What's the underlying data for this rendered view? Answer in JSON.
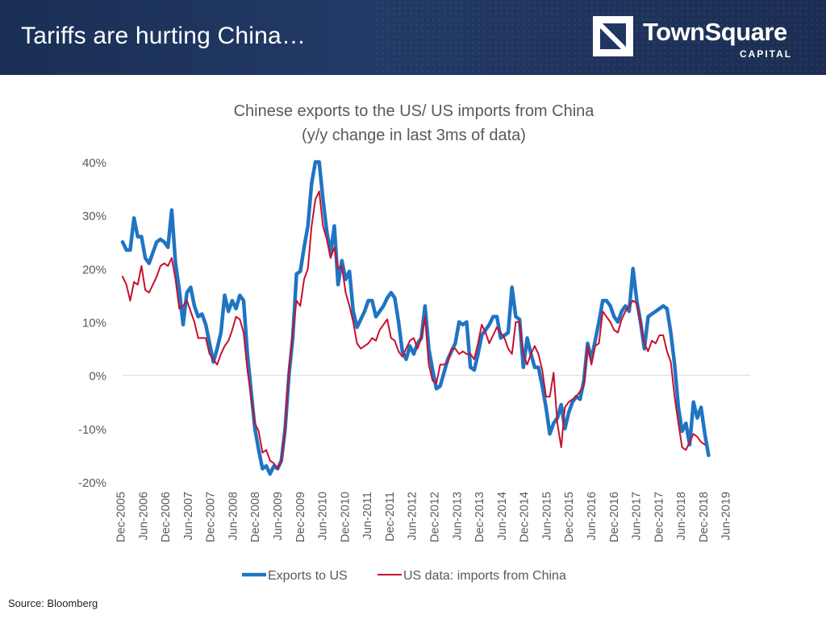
{
  "slide": {
    "title": "Tariffs are hurting China…",
    "logo_name": "TownSquare",
    "logo_sub": "CAPITAL",
    "source": "Source: Bloomberg"
  },
  "colors": {
    "header_bg": "#1f3660",
    "series_exports": "#1f74c4",
    "series_imports": "#c8102e"
  },
  "chart_data": {
    "type": "line",
    "title_lines": [
      "Chinese exports to the US/ US imports from China",
      "(y/y change in last 3ms of data)"
    ],
    "x_ticks": [
      "Dec-2005",
      "Jun-2006",
      "Dec-2006",
      "Jun-2007",
      "Dec-2007",
      "Jun-2008",
      "Dec-2008",
      "Jun-2009",
      "Dec-2009",
      "Jun-2010",
      "Dec-2010",
      "Jun-2011",
      "Dec-2011",
      "Jun-2012",
      "Dec-2012",
      "Jun-2013",
      "Dec-2013",
      "Jun-2014",
      "Dec-2014",
      "Jun-2015",
      "Dec-2015",
      "Jun-2016",
      "Dec-2016",
      "Jun-2017",
      "Dec-2017",
      "Jun-2018",
      "Dec-2018",
      "Jun-2019"
    ],
    "y_ticks": [
      40,
      30,
      20,
      10,
      0,
      -10,
      -20
    ],
    "y_tick_labels": [
      "40%",
      "30%",
      "20%",
      "10%",
      "0%",
      "-10%",
      "-20%"
    ],
    "ylim": [
      -20,
      40
    ],
    "x_unit": "months since Dec-2005",
    "xlim": [
      0,
      166
    ],
    "legend_position": "bottom",
    "grid": "zero-line only",
    "series": [
      {
        "name": "Exports to US",
        "color": "#1f74c4",
        "width": 4.5,
        "points": [
          [
            0,
            25
          ],
          [
            1,
            23.5
          ],
          [
            2,
            23.5
          ],
          [
            3,
            29.5
          ],
          [
            4,
            26
          ],
          [
            5,
            26
          ],
          [
            6,
            22
          ],
          [
            7,
            21
          ],
          [
            8,
            23
          ],
          [
            9,
            25
          ],
          [
            10,
            25.5
          ],
          [
            11,
            25
          ],
          [
            12,
            24
          ],
          [
            13,
            31
          ],
          [
            14,
            21
          ],
          [
            15,
            16
          ],
          [
            16,
            9.5
          ],
          [
            17,
            15.5
          ],
          [
            18,
            16.5
          ],
          [
            19,
            13
          ],
          [
            20,
            11
          ],
          [
            21,
            11.5
          ],
          [
            22,
            9.5
          ],
          [
            23,
            6
          ],
          [
            24,
            2.5
          ],
          [
            25,
            5
          ],
          [
            26,
            8
          ],
          [
            27,
            15
          ],
          [
            28,
            12
          ],
          [
            29,
            14
          ],
          [
            30,
            12.5
          ],
          [
            31,
            15
          ],
          [
            32,
            14
          ],
          [
            33,
            4
          ],
          [
            34,
            -3
          ],
          [
            35,
            -10
          ],
          [
            36,
            -14
          ],
          [
            37,
            -17.5
          ],
          [
            38,
            -17
          ],
          [
            39,
            -18.5
          ],
          [
            40,
            -17
          ],
          [
            41,
            -17.5
          ],
          [
            42,
            -16
          ],
          [
            43,
            -10
          ],
          [
            44,
            0
          ],
          [
            45,
            7
          ],
          [
            46,
            19
          ],
          [
            47,
            19.5
          ],
          [
            48,
            24
          ],
          [
            49,
            28
          ],
          [
            50,
            36
          ],
          [
            51,
            40
          ],
          [
            52,
            40
          ],
          [
            53,
            33
          ],
          [
            54,
            27
          ],
          [
            55,
            23
          ],
          [
            56,
            28
          ],
          [
            57,
            17
          ],
          [
            58,
            21.5
          ],
          [
            59,
            18
          ],
          [
            60,
            19.5
          ],
          [
            61,
            12
          ],
          [
            62,
            9
          ],
          [
            63,
            10.5
          ],
          [
            64,
            12
          ],
          [
            65,
            14
          ],
          [
            66,
            14
          ],
          [
            67,
            11
          ],
          [
            68,
            12
          ],
          [
            69,
            13
          ],
          [
            70,
            14.5
          ],
          [
            71,
            15.5
          ],
          [
            72,
            14.5
          ],
          [
            73,
            10
          ],
          [
            74,
            4.5
          ],
          [
            75,
            3
          ],
          [
            76,
            5.5
          ],
          [
            77,
            4
          ],
          [
            78,
            6
          ],
          [
            79,
            7
          ],
          [
            80,
            13
          ],
          [
            81,
            5
          ],
          [
            82,
            1
          ],
          [
            83,
            -2.5
          ],
          [
            84,
            -2
          ],
          [
            85,
            0.5
          ],
          [
            86,
            3
          ],
          [
            87,
            4.5
          ],
          [
            88,
            6
          ],
          [
            89,
            10
          ],
          [
            90,
            9.5
          ],
          [
            91,
            10
          ],
          [
            92,
            1.5
          ],
          [
            93,
            1
          ],
          [
            94,
            4
          ],
          [
            95,
            7.5
          ],
          [
            96,
            8.5
          ],
          [
            97,
            9.5
          ],
          [
            98,
            11
          ],
          [
            99,
            11
          ],
          [
            100,
            7
          ],
          [
            101,
            7.5
          ],
          [
            102,
            8
          ],
          [
            103,
            16.5
          ],
          [
            104,
            11
          ],
          [
            105,
            10.5
          ],
          [
            106,
            1.5
          ],
          [
            107,
            7
          ],
          [
            108,
            4
          ],
          [
            109,
            1.5
          ],
          [
            110,
            1.5
          ],
          [
            111,
            -2
          ],
          [
            112,
            -6
          ],
          [
            113,
            -11
          ],
          [
            114,
            -9
          ],
          [
            115,
            -8
          ],
          [
            116,
            -5.5
          ],
          [
            117,
            -10
          ],
          [
            118,
            -7
          ],
          [
            119,
            -5
          ],
          [
            120,
            -4
          ],
          [
            121,
            -4.5
          ],
          [
            122,
            -1
          ],
          [
            123,
            6
          ],
          [
            124,
            3
          ],
          [
            125,
            6.5
          ],
          [
            126,
            10
          ],
          [
            127,
            14
          ],
          [
            128,
            14
          ],
          [
            129,
            13
          ],
          [
            130,
            11
          ],
          [
            131,
            10
          ],
          [
            132,
            12
          ],
          [
            133,
            13
          ],
          [
            134,
            12
          ],
          [
            135,
            20
          ],
          [
            136,
            14
          ],
          [
            137,
            10
          ],
          [
            138,
            5
          ],
          [
            139,
            11
          ],
          [
            140,
            11.5
          ],
          [
            141,
            12
          ],
          [
            142,
            12.5
          ],
          [
            143,
            13
          ],
          [
            144,
            12.5
          ],
          [
            145,
            8
          ],
          [
            146,
            2
          ],
          [
            147,
            -6
          ],
          [
            148,
            -10.5
          ],
          [
            149,
            -9
          ],
          [
            150,
            -13
          ],
          [
            151,
            -5
          ],
          [
            152,
            -8
          ],
          [
            153,
            -6
          ],
          [
            154,
            -11
          ],
          [
            155,
            -15
          ]
        ]
      },
      {
        "name": "US data: imports from China",
        "color": "#c8102e",
        "width": 2,
        "points": [
          [
            0,
            18.5
          ],
          [
            1,
            17
          ],
          [
            2,
            14
          ],
          [
            3,
            17.5
          ],
          [
            4,
            17
          ],
          [
            5,
            20.5
          ],
          [
            6,
            16
          ],
          [
            7,
            15.5
          ],
          [
            8,
            17
          ],
          [
            9,
            18.5
          ],
          [
            10,
            20.5
          ],
          [
            11,
            21
          ],
          [
            12,
            20.5
          ],
          [
            13,
            22
          ],
          [
            14,
            18
          ],
          [
            15,
            12.5
          ],
          [
            16,
            13
          ],
          [
            17,
            14
          ],
          [
            18,
            12
          ],
          [
            19,
            10
          ],
          [
            20,
            7
          ],
          [
            21,
            7
          ],
          [
            22,
            7
          ],
          [
            23,
            4
          ],
          [
            24,
            3
          ],
          [
            25,
            2
          ],
          [
            26,
            4
          ],
          [
            27,
            5.5
          ],
          [
            28,
            6.5
          ],
          [
            29,
            8.5
          ],
          [
            30,
            11
          ],
          [
            31,
            10.5
          ],
          [
            32,
            8
          ],
          [
            33,
            1
          ],
          [
            34,
            -4
          ],
          [
            35,
            -9
          ],
          [
            36,
            -10.5
          ],
          [
            37,
            -14.5
          ],
          [
            38,
            -14
          ],
          [
            39,
            -16
          ],
          [
            40,
            -16.5
          ],
          [
            41,
            -17.5
          ],
          [
            42,
            -16
          ],
          [
            43,
            -10
          ],
          [
            44,
            1
          ],
          [
            45,
            8
          ],
          [
            46,
            14
          ],
          [
            47,
            13
          ],
          [
            48,
            18
          ],
          [
            49,
            20
          ],
          [
            50,
            28
          ],
          [
            51,
            33
          ],
          [
            52,
            34.5
          ],
          [
            53,
            28
          ],
          [
            54,
            25.5
          ],
          [
            55,
            22
          ],
          [
            56,
            24
          ],
          [
            57,
            20
          ],
          [
            58,
            20.5
          ],
          [
            59,
            15.5
          ],
          [
            60,
            13
          ],
          [
            61,
            10
          ],
          [
            62,
            6
          ],
          [
            63,
            5
          ],
          [
            64,
            5.5
          ],
          [
            65,
            6
          ],
          [
            66,
            7
          ],
          [
            67,
            6.5
          ],
          [
            68,
            8.5
          ],
          [
            69,
            9.5
          ],
          [
            70,
            10.5
          ],
          [
            71,
            7
          ],
          [
            72,
            6.5
          ],
          [
            73,
            4.5
          ],
          [
            74,
            3.5
          ],
          [
            75,
            5
          ],
          [
            76,
            6.5
          ],
          [
            77,
            7
          ],
          [
            78,
            5
          ],
          [
            79,
            7
          ],
          [
            80,
            11
          ],
          [
            81,
            2
          ],
          [
            82,
            -1
          ],
          [
            83,
            -1.5
          ],
          [
            84,
            2
          ],
          [
            85,
            2
          ],
          [
            86,
            2.5
          ],
          [
            87,
            5
          ],
          [
            88,
            5
          ],
          [
            89,
            4
          ],
          [
            90,
            4.5
          ],
          [
            91,
            4
          ],
          [
            92,
            4
          ],
          [
            93,
            3
          ],
          [
            94,
            6
          ],
          [
            95,
            9.5
          ],
          [
            96,
            8
          ],
          [
            97,
            6
          ],
          [
            98,
            7.5
          ],
          [
            99,
            9
          ],
          [
            100,
            8
          ],
          [
            101,
            7
          ],
          [
            102,
            5
          ],
          [
            103,
            4
          ],
          [
            104,
            10
          ],
          [
            105,
            10
          ],
          [
            106,
            4
          ],
          [
            107,
            2
          ],
          [
            108,
            4
          ],
          [
            109,
            5.5
          ],
          [
            110,
            4
          ],
          [
            111,
            1
          ],
          [
            112,
            -4
          ],
          [
            113,
            -4
          ],
          [
            114,
            0.5
          ],
          [
            115,
            -9
          ],
          [
            116,
            -13.5
          ],
          [
            117,
            -6
          ],
          [
            118,
            -5
          ],
          [
            119,
            -4.5
          ],
          [
            120,
            -4
          ],
          [
            121,
            -3
          ],
          [
            122,
            -2
          ],
          [
            123,
            5.5
          ],
          [
            124,
            2
          ],
          [
            125,
            5.5
          ],
          [
            126,
            6
          ],
          [
            127,
            12
          ],
          [
            128,
            11
          ],
          [
            129,
            10
          ],
          [
            130,
            8.5
          ],
          [
            131,
            8
          ],
          [
            132,
            10.5
          ],
          [
            133,
            12
          ],
          [
            134,
            13
          ],
          [
            135,
            14
          ],
          [
            136,
            13.5
          ],
          [
            137,
            10
          ],
          [
            138,
            6
          ],
          [
            139,
            4.5
          ],
          [
            140,
            6.5
          ],
          [
            141,
            6
          ],
          [
            142,
            7.5
          ],
          [
            143,
            7.5
          ],
          [
            144,
            4.5
          ],
          [
            145,
            2.5
          ],
          [
            146,
            -4
          ],
          [
            147,
            -9
          ],
          [
            148,
            -13.5
          ],
          [
            149,
            -14
          ],
          [
            150,
            -12.5
          ],
          [
            151,
            -11
          ],
          [
            152,
            -11.5
          ],
          [
            153,
            -12.5
          ],
          [
            154,
            -13
          ]
        ]
      }
    ]
  }
}
